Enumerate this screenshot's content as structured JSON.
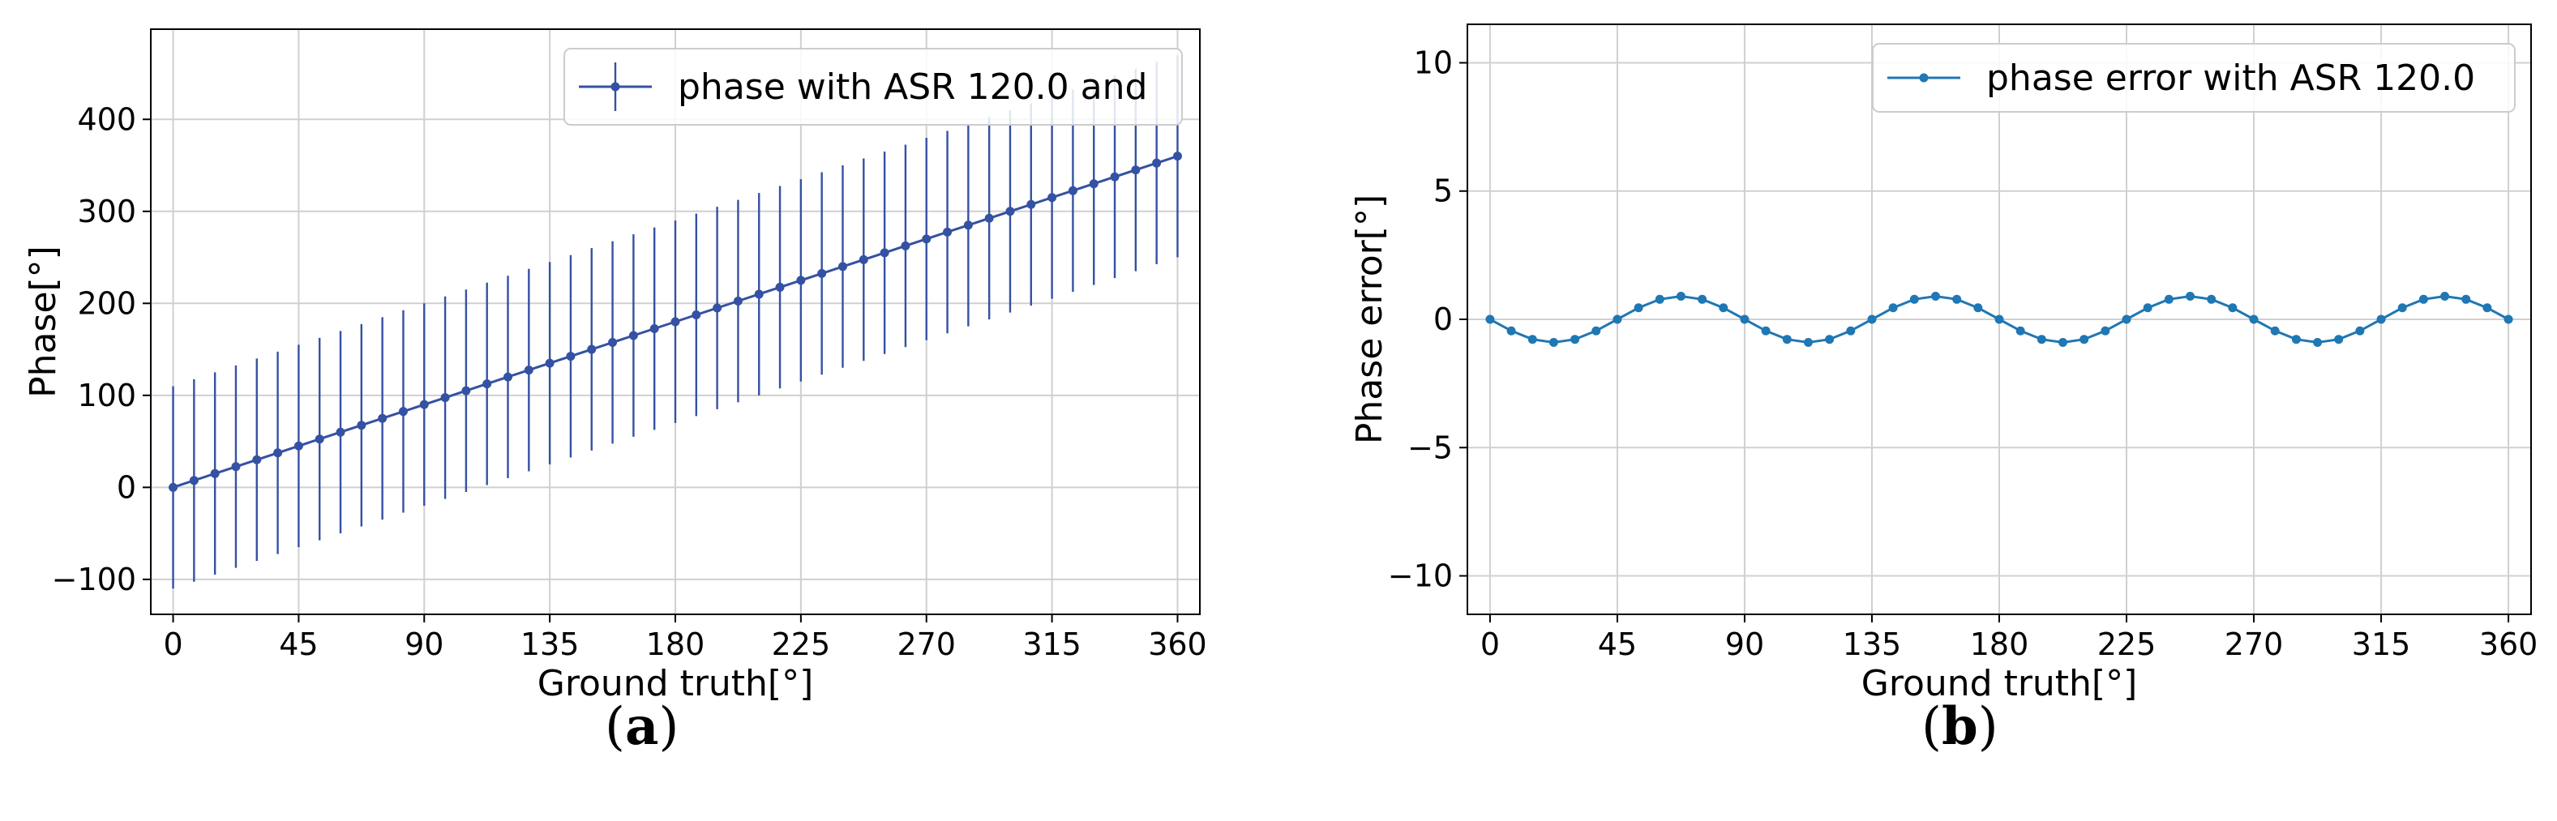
{
  "chart_data": [
    {
      "type": "line",
      "caption_prefix": "(",
      "caption_letter": "a",
      "caption_suffix": ")",
      "xlabel": "Ground truth[°]",
      "ylabel": "Phase[°]",
      "xlim": [
        -8,
        368
      ],
      "ylim": [
        -138,
        498
      ],
      "xticks": [
        0,
        45,
        90,
        135,
        180,
        225,
        270,
        315,
        360
      ],
      "yticks": [
        -100,
        0,
        100,
        200,
        300,
        400
      ],
      "grid": true,
      "legend_position": "top-right",
      "series": [
        {
          "name": "phase with ASR 120.0 and",
          "color": "#3451a3",
          "marker": "circle",
          "x": [
            0,
            7.5,
            15,
            22.5,
            30,
            37.5,
            45,
            52.5,
            60,
            67.5,
            75,
            82.5,
            90,
            97.5,
            105,
            112.5,
            120,
            127.5,
            135,
            142.5,
            150,
            157.5,
            165,
            172.5,
            180,
            187.5,
            195,
            202.5,
            210,
            217.5,
            225,
            232.5,
            240,
            247.5,
            255,
            262.5,
            270,
            277.5,
            285,
            292.5,
            300,
            307.5,
            315,
            322.5,
            330,
            337.5,
            345,
            352.5,
            360
          ],
          "y": [
            0,
            7.5,
            15,
            22.5,
            30,
            37.5,
            45,
            52.5,
            60,
            67.5,
            75,
            82.5,
            90,
            97.5,
            105,
            112.5,
            120,
            127.5,
            135,
            142.5,
            150,
            157.5,
            165,
            172.5,
            180,
            187.5,
            195,
            202.5,
            210,
            217.5,
            225,
            232.5,
            240,
            247.5,
            255,
            262.5,
            270,
            277.5,
            285,
            292.5,
            300,
            307.5,
            315,
            322.5,
            330,
            337.5,
            345,
            352.5,
            360
          ],
          "yerr": 110
        }
      ]
    },
    {
      "type": "line",
      "caption_prefix": "(",
      "caption_letter": "b",
      "caption_suffix": ")",
      "xlabel": "Ground truth[°]",
      "ylabel": "Phase error[°]",
      "xlim": [
        -8,
        368
      ],
      "ylim": [
        -11.5,
        11.5
      ],
      "xticks": [
        0,
        45,
        90,
        135,
        180,
        225,
        270,
        315,
        360
      ],
      "yticks": [
        -10,
        -5,
        0,
        5,
        10
      ],
      "grid": true,
      "legend_position": "top-right",
      "series": [
        {
          "name": "phase error with ASR 120.0",
          "color": "#1f77b4",
          "marker": "circle",
          "x": [
            0,
            7.5,
            15,
            22.5,
            30,
            37.5,
            45,
            52.5,
            60,
            67.5,
            75,
            82.5,
            90,
            97.5,
            105,
            112.5,
            120,
            127.5,
            135,
            142.5,
            150,
            157.5,
            165,
            172.5,
            180,
            187.5,
            195,
            202.5,
            210,
            217.5,
            225,
            232.5,
            240,
            247.5,
            255,
            262.5,
            270,
            277.5,
            285,
            292.5,
            300,
            307.5,
            315,
            322.5,
            330,
            337.5,
            345,
            352.5,
            360
          ],
          "y": [
            0,
            -0.45,
            -0.78,
            -0.9,
            -0.78,
            -0.45,
            0,
            0.45,
            0.78,
            0.9,
            0.78,
            0.45,
            0,
            -0.45,
            -0.78,
            -0.9,
            -0.78,
            -0.45,
            0,
            0.45,
            0.78,
            0.9,
            0.78,
            0.45,
            0,
            -0.45,
            -0.78,
            -0.9,
            -0.78,
            -0.45,
            0,
            0.45,
            0.78,
            0.9,
            0.78,
            0.45,
            0,
            -0.45,
            -0.78,
            -0.9,
            -0.78,
            -0.45,
            0,
            0.45,
            0.78,
            0.9,
            0.78,
            0.45,
            0
          ]
        }
      ]
    }
  ]
}
